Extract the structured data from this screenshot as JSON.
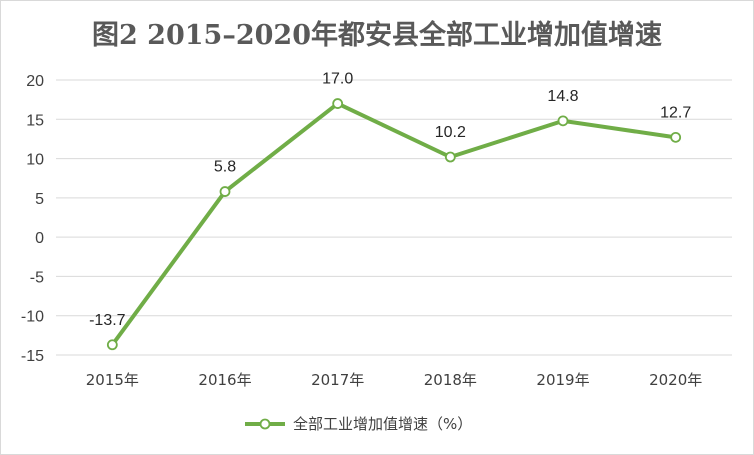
{
  "chart_data": {
    "type": "line",
    "title": "图2   2015–2020年都安县全部工业增加值增速",
    "categories": [
      "2015年",
      "2016年",
      "2017年",
      "2018年",
      "2019年",
      "2020年"
    ],
    "series": [
      {
        "name": "全部工业增加值增速（%）",
        "values": [
          -13.7,
          5.8,
          17.0,
          10.2,
          14.8,
          12.7
        ],
        "labels": [
          "-13.7",
          "5.8",
          "17.0",
          "10.2",
          "14.8",
          "12.7"
        ],
        "color": "#70ad47"
      }
    ],
    "yticks": [
      "20",
      "15",
      "10",
      "5",
      "0",
      "-5",
      "-10",
      "-15"
    ],
    "ylim": [
      -15,
      20
    ],
    "grid": true,
    "legend": "bottom"
  }
}
